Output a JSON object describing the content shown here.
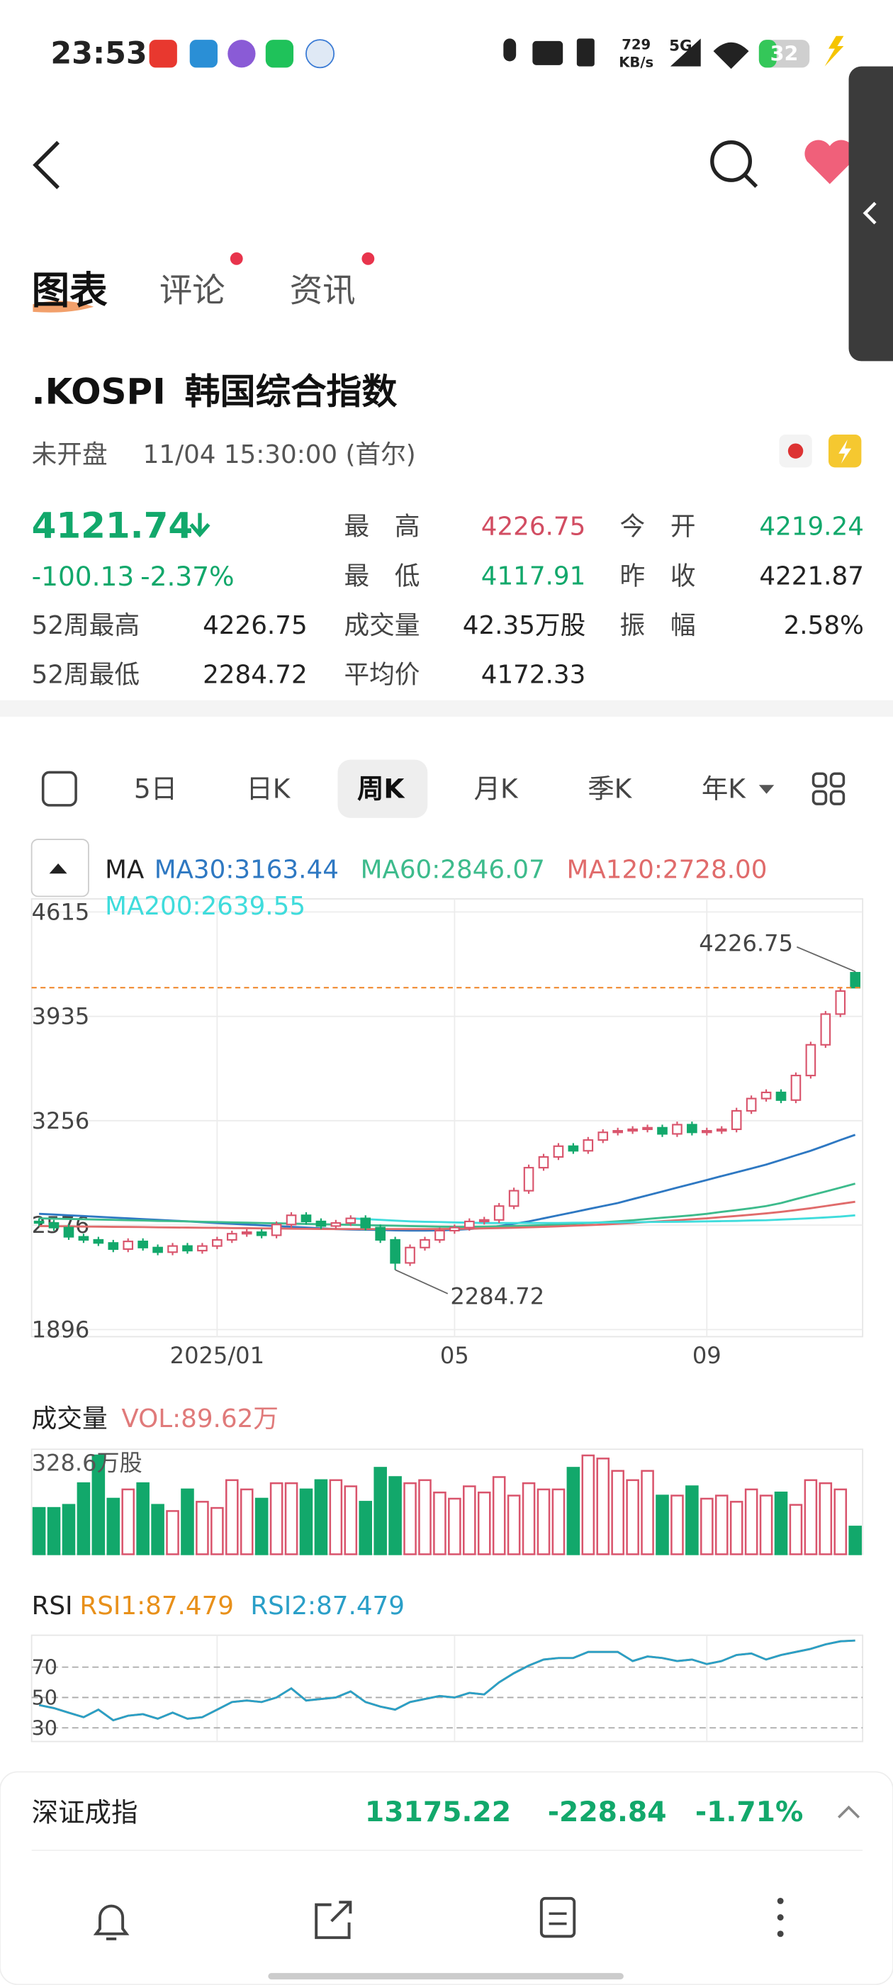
{
  "status_bar": {
    "time": "23:53",
    "speed": "729",
    "speed_unit": "KB/s",
    "network": "5G",
    "battery": "32"
  },
  "tabs": [
    "图表",
    "评论",
    "资讯"
  ],
  "stock": {
    "code": ".KOSPI",
    "name": "韩国综合指数",
    "state": "未开盘",
    "time": "11/04 15:30:00 (首尔)",
    "price": "4121.74",
    "change": "-100.13",
    "change_pct": "-2.37%"
  },
  "stats": [
    {
      "label": "最　高",
      "value": "4226.75",
      "color": "#d24d62"
    },
    {
      "label": "今　开",
      "value": "4219.24",
      "color": "#12a86b"
    },
    {
      "label": "最　低",
      "value": "4117.91",
      "color": "#12a86b"
    },
    {
      "label": "昨　收",
      "value": "4221.87",
      "color": "#222222"
    },
    {
      "label": "52周最高",
      "value": "4226.75",
      "color": "#222222"
    },
    {
      "label": "成交量",
      "value": "42.35万股",
      "color": "#222222"
    },
    {
      "label": "振　幅",
      "value": "2.58%",
      "color": "#222222"
    },
    {
      "label": "52周最低",
      "value": "2284.72",
      "color": "#222222"
    },
    {
      "label": "平均价",
      "value": "4172.33",
      "color": "#222222"
    }
  ],
  "periods": [
    "5日",
    "日K",
    "周K",
    "月K",
    "季K",
    "年K"
  ],
  "selected_period": 2,
  "chart_data": [
    {
      "type": "candlestick",
      "ma_title": "MA",
      "up_color": "#d9546c",
      "down_color": "#12a86b",
      "price_line_color": "#f08a30",
      "categories": [
        null,
        null,
        null,
        null,
        null,
        null,
        null,
        null,
        null,
        null,
        null,
        null,
        "2025/01",
        null,
        null,
        null,
        null,
        null,
        null,
        null,
        null,
        null,
        null,
        null,
        null,
        null,
        null,
        null,
        "05",
        null,
        null,
        null,
        null,
        null,
        null,
        null,
        null,
        null,
        null,
        null,
        null,
        null,
        null,
        null,
        null,
        "09",
        null,
        null,
        null,
        null,
        null,
        null,
        null,
        null,
        null,
        null
      ],
      "open": [
        2600,
        2590,
        2560,
        2500,
        2480,
        2460,
        2420,
        2470,
        2430,
        2400,
        2440,
        2410,
        2440,
        2480,
        2520,
        2530,
        2510,
        2580,
        2640,
        2600,
        2570,
        2590,
        2620,
        2560,
        2480,
        2330,
        2430,
        2480,
        2540,
        2560,
        2600,
        2610,
        2700,
        2800,
        2950,
        3020,
        3090,
        3060,
        3130,
        3180,
        3190,
        3200,
        3210,
        3170,
        3230,
        3180,
        3190,
        3200,
        3320,
        3400,
        3440,
        3390,
        3550,
        3750,
        3950,
        4219.24
      ],
      "high": [
        2620,
        2610,
        2580,
        2520,
        2500,
        2480,
        2490,
        2490,
        2450,
        2460,
        2460,
        2460,
        2500,
        2540,
        2550,
        2550,
        2600,
        2660,
        2660,
        2620,
        2610,
        2640,
        2640,
        2580,
        2500,
        2450,
        2500,
        2560,
        2580,
        2620,
        2630,
        2720,
        2820,
        2970,
        3040,
        3110,
        3110,
        3150,
        3200,
        3210,
        3220,
        3230,
        3230,
        3250,
        3250,
        3210,
        3220,
        3340,
        3420,
        3460,
        3460,
        3570,
        3770,
        3970,
        4120,
        4226.75
      ],
      "low": [
        2570,
        2540,
        2480,
        2460,
        2440,
        2400,
        2400,
        2410,
        2380,
        2380,
        2390,
        2390,
        2420,
        2460,
        2500,
        2490,
        2490,
        2560,
        2580,
        2550,
        2550,
        2570,
        2540,
        2460,
        2284.72,
        2310,
        2410,
        2460,
        2520,
        2540,
        2580,
        2590,
        2680,
        2780,
        2930,
        3000,
        3040,
        3040,
        3110,
        3160,
        3170,
        3180,
        3150,
        3150,
        3160,
        3160,
        3170,
        3180,
        3300,
        3380,
        3370,
        3370,
        3530,
        3730,
        3930,
        4117.91
      ],
      "close": [
        2590,
        2560,
        2500,
        2480,
        2460,
        2420,
        2470,
        2430,
        2400,
        2440,
        2410,
        2440,
        2480,
        2520,
        2530,
        2510,
        2580,
        2640,
        2600,
        2570,
        2590,
        2620,
        2560,
        2480,
        2330,
        2430,
        2480,
        2540,
        2560,
        2600,
        2610,
        2700,
        2800,
        2950,
        3020,
        3090,
        3060,
        3130,
        3180,
        3190,
        3200,
        3210,
        3170,
        3230,
        3180,
        3190,
        3200,
        3320,
        3400,
        3440,
        3390,
        3550,
        3750,
        3950,
        4100,
        4121.74
      ],
      "series": [
        {
          "name": "MA30:3163.44",
          "color": "#2e78c2",
          "values": [
            2650,
            2645,
            2640,
            2635,
            2630,
            2625,
            2620,
            2615,
            2610,
            2605,
            2600,
            2595,
            2590,
            2585,
            2580,
            2575,
            2570,
            2565,
            2560,
            2555,
            2550,
            2548,
            2546,
            2544,
            2542,
            2540,
            2540,
            2542,
            2545,
            2550,
            2558,
            2570,
            2585,
            2600,
            2620,
            2640,
            2660,
            2680,
            2700,
            2720,
            2745,
            2770,
            2795,
            2820,
            2845,
            2870,
            2895,
            2920,
            2945,
            2970,
            3000,
            3030,
            3060,
            3095,
            3130,
            3163.44
          ]
        },
        {
          "name": "MA60:2846.07",
          "color": "#3dbb8c",
          "values": [
            2620,
            2618,
            2616,
            2614,
            2612,
            2610,
            2608,
            2606,
            2604,
            2602,
            2600,
            2598,
            2596,
            2594,
            2592,
            2590,
            2588,
            2586,
            2584,
            2582,
            2580,
            2578,
            2576,
            2574,
            2572,
            2570,
            2568,
            2566,
            2565,
            2565,
            2566,
            2568,
            2570,
            2573,
            2576,
            2580,
            2585,
            2590,
            2595,
            2600,
            2608,
            2616,
            2624,
            2632,
            2640,
            2650,
            2662,
            2674,
            2686,
            2700,
            2720,
            2745,
            2770,
            2795,
            2820,
            2846.07
          ]
        },
        {
          "name": "MA120:2728.00",
          "color": "#e06b6b",
          "values": [
            2570,
            2569,
            2568,
            2567,
            2566,
            2565,
            2564,
            2563,
            2562,
            2561,
            2560,
            2559,
            2558,
            2557,
            2556,
            2555,
            2554,
            2553,
            2552,
            2551,
            2550,
            2550,
            2550,
            2550,
            2550,
            2550,
            2550,
            2551,
            2552,
            2553,
            2555,
            2557,
            2559,
            2562,
            2565,
            2568,
            2572,
            2576,
            2580,
            2585,
            2590,
            2596,
            2602,
            2608,
            2614,
            2620,
            2628,
            2636,
            2644,
            2652,
            2662,
            2674,
            2686,
            2700,
            2714,
            2728
          ]
        },
        {
          "name": "MA200:2639.55",
          "color": "#3fdcdc",
          "values": [
            null,
            null,
            null,
            null,
            null,
            null,
            null,
            null,
            null,
            null,
            null,
            null,
            null,
            null,
            null,
            null,
            null,
            null,
            null,
            null,
            null,
            2620,
            2615,
            2610,
            2605,
            2600,
            2598,
            2596,
            2594,
            2592,
            2590,
            2590,
            2590,
            2590,
            2590,
            2590,
            2591,
            2592,
            2593,
            2594,
            2595,
            2596,
            2597,
            2598,
            2599,
            2600,
            2602,
            2604,
            2606,
            2608,
            2612,
            2616,
            2621,
            2626,
            2632,
            2639.55
          ]
        }
      ],
      "ylim": [
        1850,
        4700
      ],
      "yticks": [
        4615,
        3935,
        3256,
        2576,
        1896
      ],
      "grid": true
    },
    {
      "type": "bar",
      "legend_title": "成交量",
      "up_color": "#d9546c",
      "down_color": "#12a86b",
      "series": [
        {
          "name": "VOL:89.62万",
          "color": "#e07a7a",
          "values": [
            150,
            150,
            160,
            230,
            320,
            180,
            210,
            230,
            160,
            140,
            210,
            170,
            150,
            240,
            210,
            180,
            230,
            230,
            210,
            240,
            240,
            220,
            170,
            280,
            250,
            230,
            240,
            200,
            180,
            220,
            200,
            250,
            190,
            230,
            210,
            210,
            280,
            320,
            310,
            270,
            240,
            270,
            190,
            190,
            220,
            180,
            190,
            170,
            210,
            190,
            200,
            160,
            240,
            230,
            210,
            89.62
          ]
        }
      ],
      "ylim": [
        0,
        340
      ],
      "yticks": [
        {
          "value": 328.6,
          "label": "328.6万股"
        }
      ]
    },
    {
      "type": "line",
      "legend_title": "RSI",
      "series": [
        {
          "name": "RSI1:87.479",
          "color": "#e8901a",
          "values": [
            45,
            43,
            40,
            37,
            42,
            35,
            38,
            39,
            36,
            40,
            36,
            37,
            42,
            47,
            48,
            47,
            50,
            56,
            48,
            49,
            50,
            54,
            47,
            44,
            42,
            47,
            49,
            51,
            50,
            53,
            52,
            60,
            66,
            71,
            75,
            76,
            76,
            80,
            80,
            80,
            74,
            77,
            76,
            74,
            75,
            72,
            74,
            78,
            79,
            75,
            78,
            80,
            82,
            85,
            87,
            87.479
          ]
        },
        {
          "name": "RSI2:87.479",
          "color": "#2a9fc8",
          "values": [
            45,
            43,
            40,
            37,
            42,
            35,
            38,
            39,
            36,
            40,
            36,
            37,
            42,
            47,
            48,
            47,
            50,
            56,
            48,
            49,
            50,
            54,
            47,
            44,
            42,
            47,
            49,
            51,
            50,
            53,
            52,
            60,
            66,
            71,
            75,
            76,
            76,
            80,
            80,
            80,
            74,
            77,
            76,
            74,
            75,
            72,
            74,
            78,
            79,
            75,
            78,
            80,
            82,
            85,
            87,
            87.479
          ]
        }
      ],
      "ylim": [
        21,
        91
      ],
      "yticks": [
        70,
        50,
        30
      ],
      "grid": true
    }
  ],
  "footer": {
    "name": "深证成指",
    "price": "13175.22",
    "change": "-228.84",
    "change_pct": "-1.71%"
  }
}
